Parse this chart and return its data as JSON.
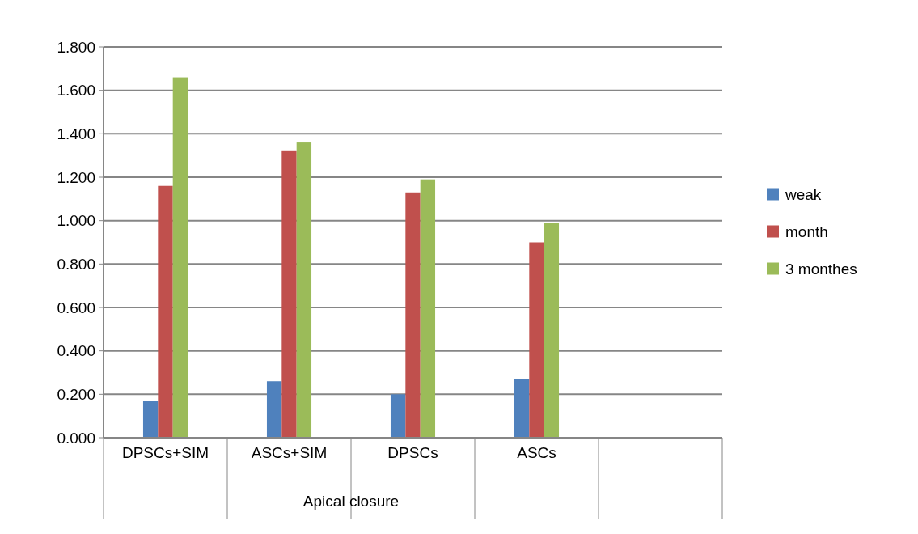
{
  "chart_data": {
    "type": "bar",
    "xlabel": "Apical closure",
    "categories": [
      "DPSCs+SIM",
      "ASCs+SIM",
      "DPSCs",
      "ASCs",
      null
    ],
    "series": [
      {
        "name": "weak",
        "color": "#4f81bd",
        "values": [
          0.17,
          0.26,
          0.2,
          0.27,
          null
        ]
      },
      {
        "name": "month",
        "color": "#c0504d",
        "values": [
          1.16,
          1.32,
          1.13,
          0.9,
          null
        ]
      },
      {
        "name": "3 monthes",
        "color": "#9bbb59",
        "values": [
          1.66,
          1.36,
          1.19,
          0.99,
          null
        ]
      }
    ],
    "ylim": [
      0,
      1.8
    ],
    "yticks": [
      {
        "value": 0,
        "label": "0.000"
      },
      {
        "value": 0.2,
        "label": "0.200"
      },
      {
        "value": 0.4,
        "label": "0.400"
      },
      {
        "value": 0.6,
        "label": "0.600"
      },
      {
        "value": 0.8,
        "label": "0.800"
      },
      {
        "value": 1,
        "label": "1.000"
      },
      {
        "value": 1.2,
        "label": "1.200"
      },
      {
        "value": 1.4,
        "label": "1.400"
      },
      {
        "value": 1.6,
        "label": "1.600"
      },
      {
        "value": 1.8,
        "label": "1.800"
      }
    ],
    "grid": "y",
    "legend": "right"
  }
}
